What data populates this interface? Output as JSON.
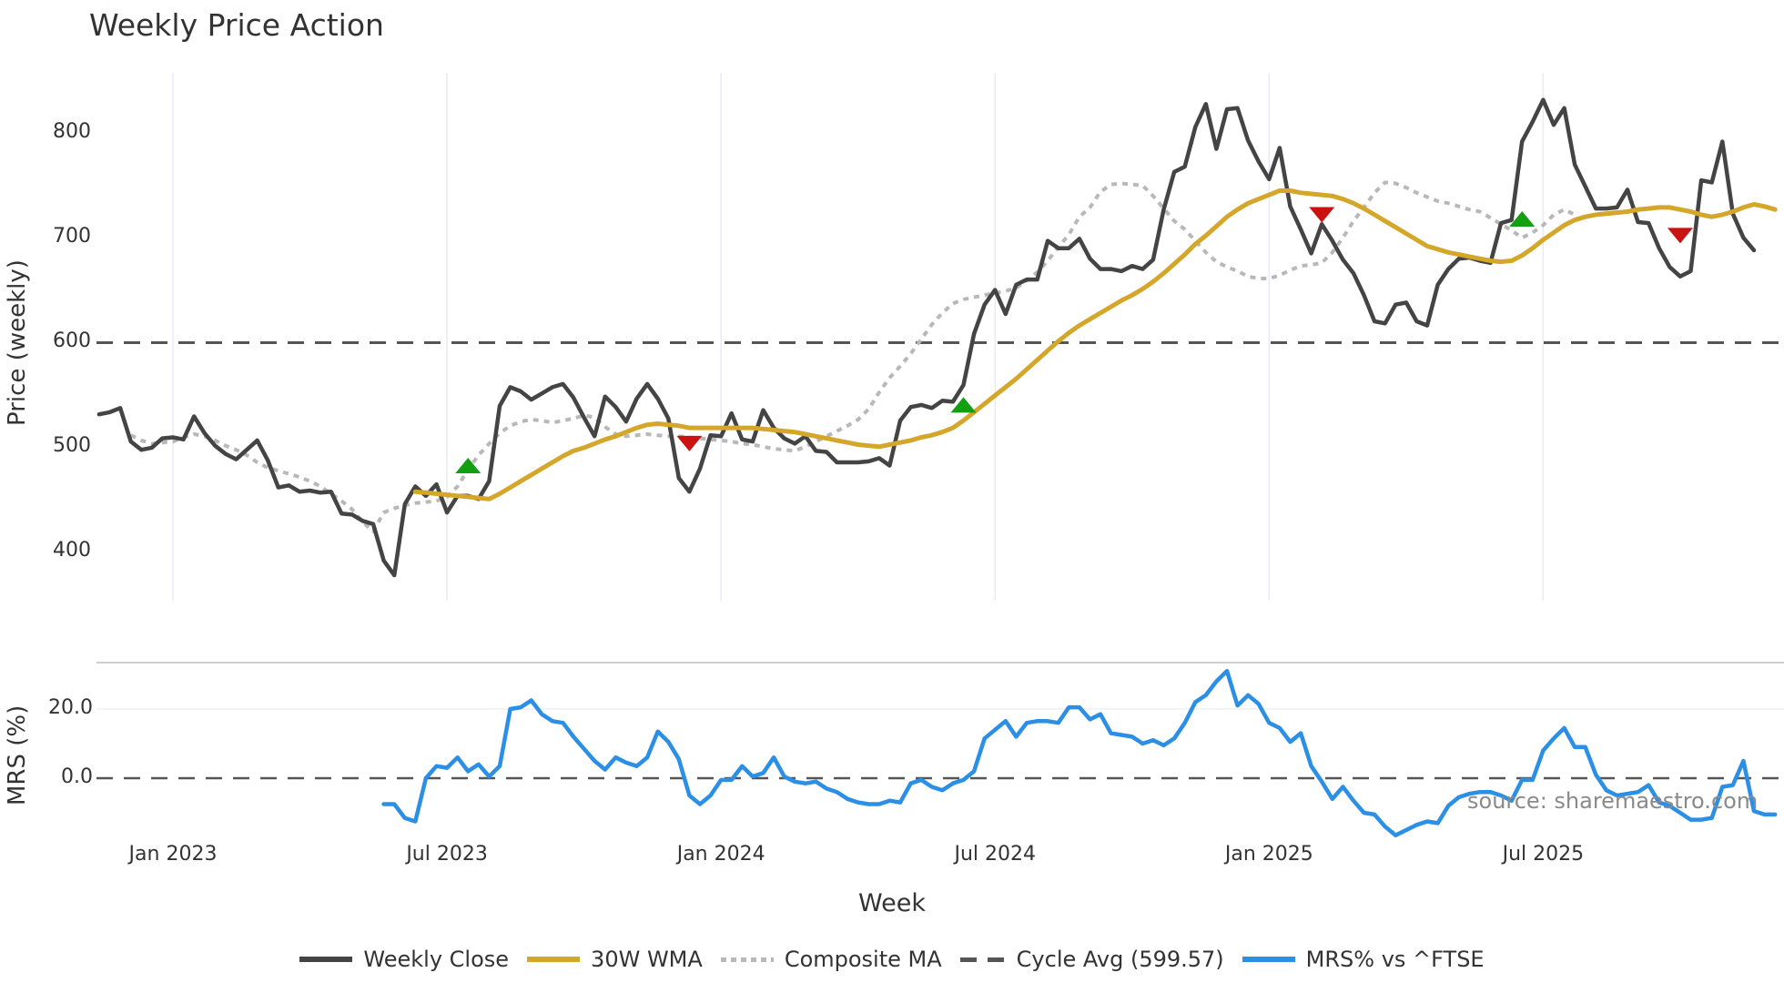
{
  "title": "Weekly Price Action",
  "watermark": "source: sharemaestro.com",
  "legend": [
    {
      "key": "close",
      "label": "Weekly Close",
      "color": "#444444"
    },
    {
      "key": "wma",
      "label": "30W WMA",
      "color": "#d4a62a"
    },
    {
      "key": "comp",
      "label": "Composite MA",
      "color": "#b8b8b8"
    },
    {
      "key": "cycle",
      "label": "Cycle Avg (599.57)",
      "color": "#555555"
    },
    {
      "key": "mrs",
      "label": "MRS% vs ^FTSE",
      "color": "#2b8fe6"
    }
  ],
  "axes": {
    "price_ylabel": "Price (weekly)",
    "mrs_ylabel": "MRS (%)",
    "xlabel": "Week",
    "price_ticks": [
      "400",
      "500",
      "600",
      "700",
      "800"
    ],
    "mrs_ticks": [
      "0.0",
      "20.0"
    ],
    "x_ticks": [
      "Jan 2023",
      "Jul 2023",
      "Jan 2024",
      "Jul 2024",
      "Jan 2025",
      "Jul 2025"
    ]
  },
  "chart_data": [
    {
      "type": "line",
      "title": "Weekly Price Action",
      "xlabel": "Week",
      "ylabel": "Price (weekly)",
      "ylim": [
        350,
        860
      ],
      "x_ticks": [
        "Jan 2023",
        "Jul 2023",
        "Jan 2024",
        "Jul 2024",
        "Jan 2025",
        "Jul 2025"
      ],
      "x_start_week_offset": -7,
      "cycle_avg": 599.57,
      "series": [
        {
          "name": "Weekly Close",
          "color": "#444444",
          "start": -7,
          "values": [
            531,
            533,
            537,
            505,
            497,
            499,
            508,
            509,
            507,
            529,
            513,
            501,
            493,
            488,
            497,
            506,
            487,
            461,
            463,
            457,
            458,
            456,
            457,
            436,
            435,
            429,
            426,
            391,
            377,
            445,
            462,
            453,
            464,
            437,
            453,
            453,
            450,
            467,
            539,
            557,
            553,
            545,
            551,
            557,
            560,
            547,
            528,
            510,
            548,
            538,
            524,
            546,
            560,
            546,
            527,
            470,
            457,
            479,
            511,
            510,
            532,
            507,
            505,
            535,
            518,
            508,
            503,
            510,
            496,
            495,
            485,
            485,
            485,
            486,
            489,
            482,
            525,
            538,
            540,
            537,
            544,
            543,
            559,
            608,
            636,
            650,
            627,
            655,
            660,
            660,
            697,
            690,
            690,
            699,
            680,
            670,
            670,
            668,
            673,
            670,
            679,
            727,
            763,
            768,
            806,
            828,
            785,
            823,
            824,
            793,
            773,
            756,
            786,
            730,
            708,
            685,
            713,
            697,
            679,
            666,
            645,
            620,
            618,
            636,
            638,
            620,
            616,
            655,
            670,
            680,
            681,
            678,
            676,
            714,
            717,
            792,
            811,
            832,
            808,
            824,
            770,
            749,
            728,
            728,
            729,
            746,
            715,
            714,
            690,
            672,
            663,
            668,
            755,
            753,
            792,
            723,
            700,
            688
          ]
        },
        {
          "name": "30W WMA",
          "color": "#d4a62a",
          "start": 23,
          "values": [
            457,
            456,
            455,
            454,
            453,
            452,
            451,
            450,
            455,
            461,
            467,
            473,
            479,
            485,
            491,
            496,
            499,
            503,
            507,
            510,
            514,
            518,
            521,
            522,
            521,
            520,
            518,
            518,
            518,
            518,
            518,
            518,
            518,
            517,
            516,
            515,
            514,
            512,
            510,
            508,
            506,
            504,
            502,
            501,
            500,
            502,
            504,
            506,
            509,
            511,
            514,
            518,
            525,
            533,
            541,
            549,
            557,
            565,
            574,
            583,
            592,
            601,
            609,
            616,
            622,
            628,
            634,
            640,
            645,
            651,
            658,
            666,
            675,
            684,
            694,
            702,
            711,
            720,
            727,
            733,
            737,
            741,
            745,
            745,
            743,
            742,
            741,
            740,
            737,
            733,
            728,
            722,
            716,
            710,
            704,
            698,
            692,
            689,
            686,
            684,
            682,
            680,
            678,
            677,
            678,
            683,
            690,
            698,
            705,
            712,
            717,
            720,
            722,
            723,
            724,
            725,
            727,
            728,
            729,
            729,
            727,
            725,
            722,
            720,
            722,
            725,
            729,
            732,
            730,
            727
          ]
        },
        {
          "name": "Composite MA",
          "color": "#b8b8b8",
          "start": -4,
          "values": [
            511,
            506,
            503,
            504,
            505,
            509,
            512,
            510,
            506,
            501,
            497,
            492,
            485,
            480,
            477,
            474,
            471,
            467,
            462,
            455,
            448,
            440,
            428,
            419,
            437,
            441,
            444,
            446,
            447,
            448,
            452,
            462,
            478,
            492,
            503,
            513,
            520,
            524,
            526,
            525,
            523,
            525,
            527,
            530,
            528,
            519,
            512,
            510,
            511,
            512,
            511,
            510,
            510,
            509,
            508,
            507,
            506,
            505,
            503,
            502,
            500,
            498,
            497,
            496,
            500,
            505,
            510,
            515,
            520,
            526,
            536,
            552,
            566,
            577,
            589,
            603,
            617,
            628,
            637,
            641,
            643,
            645,
            647,
            649,
            652,
            659,
            667,
            678,
            691,
            703,
            720,
            729,
            744,
            751,
            752,
            751,
            750,
            740,
            728,
            716,
            708,
            697,
            686,
            677,
            672,
            668,
            663,
            661,
            661,
            664,
            669,
            673,
            674,
            676,
            686,
            700,
            716,
            729,
            743,
            753,
            752,
            748,
            743,
            739,
            735,
            733,
            730,
            727,
            725,
            719,
            713,
            707,
            700,
            705,
            712,
            722,
            727,
            722
          ]
        },
        {
          "name": "MRS% vs ^FTSE",
          "color": "#2b8fe6",
          "panel": "mrs",
          "ylim": [
            -16,
            35
          ],
          "start": 20,
          "values": [
            -7.5,
            -7.5,
            -11.5,
            -12.5,
            0.0,
            3.5,
            3.0,
            6.0,
            2.0,
            4.0,
            0.5,
            3.5,
            20.0,
            20.5,
            22.5,
            18.5,
            16.5,
            16.0,
            12.0,
            8.5,
            5.0,
            2.5,
            6.0,
            4.5,
            3.5,
            6.0,
            13.5,
            10.5,
            5.5,
            -5.0,
            -7.5,
            -5.0,
            -0.5,
            -0.5,
            3.5,
            0.5,
            1.5,
            6.0,
            0.5,
            -1.0,
            -1.5,
            -1.0,
            -3.0,
            -4.0,
            -6.0,
            -7.0,
            -7.5,
            -7.5,
            -6.5,
            -7.0,
            -1.5,
            -0.5,
            -2.5,
            -3.5,
            -1.5,
            -0.5,
            2.0,
            11.5,
            14.0,
            16.5,
            12.0,
            16.0,
            16.5,
            16.5,
            16.0,
            20.5,
            20.5,
            17.0,
            18.5,
            13.0,
            12.5,
            12.0,
            10.0,
            11.0,
            9.5,
            11.5,
            16.0,
            22.0,
            24.0,
            28.0,
            31.0,
            21.0,
            24.0,
            21.5,
            16.0,
            14.5,
            10.5,
            13.0,
            3.5,
            -1.0,
            -6.0,
            -2.5,
            -6.5,
            -10.0,
            -10.5,
            -14.0,
            -16.5,
            -15.0,
            -13.5,
            -12.5,
            -13.0,
            -8.0,
            -5.5,
            -4.5,
            -4.0,
            -4.0,
            -5.0,
            -6.5,
            -0.5,
            -0.5,
            8.0,
            11.5,
            14.5,
            9.0,
            9.0,
            1.0,
            -3.5,
            -5.0,
            -4.5,
            -4.0,
            -2.0,
            -7.0,
            -8.0,
            -10.0,
            -12.0,
            -12.0,
            -11.5,
            -2.5,
            -2.0,
            5.0,
            -9.5,
            -10.5,
            -10.5
          ]
        }
      ],
      "signals": [
        {
          "type": "buy",
          "week": 28,
          "price": 482,
          "color": "#12a012"
        },
        {
          "type": "sell",
          "week": 49,
          "price": 503,
          "color": "#cc1111"
        },
        {
          "type": "buy",
          "week": 75,
          "price": 540,
          "color": "#12a012"
        },
        {
          "type": "sell",
          "week": 109,
          "price": 722,
          "color": "#cc1111"
        },
        {
          "type": "buy",
          "week": 128,
          "price": 718,
          "color": "#12a012"
        },
        {
          "type": "sell",
          "week": 143,
          "price": 702,
          "color": "#cc1111"
        }
      ]
    },
    {
      "type": "line",
      "title": "MRS (%)",
      "ylabel": "MRS (%)",
      "ylim": [
        -16,
        35
      ],
      "reference_line": 0.0,
      "series_ref": "MRS% vs ^FTSE"
    }
  ]
}
